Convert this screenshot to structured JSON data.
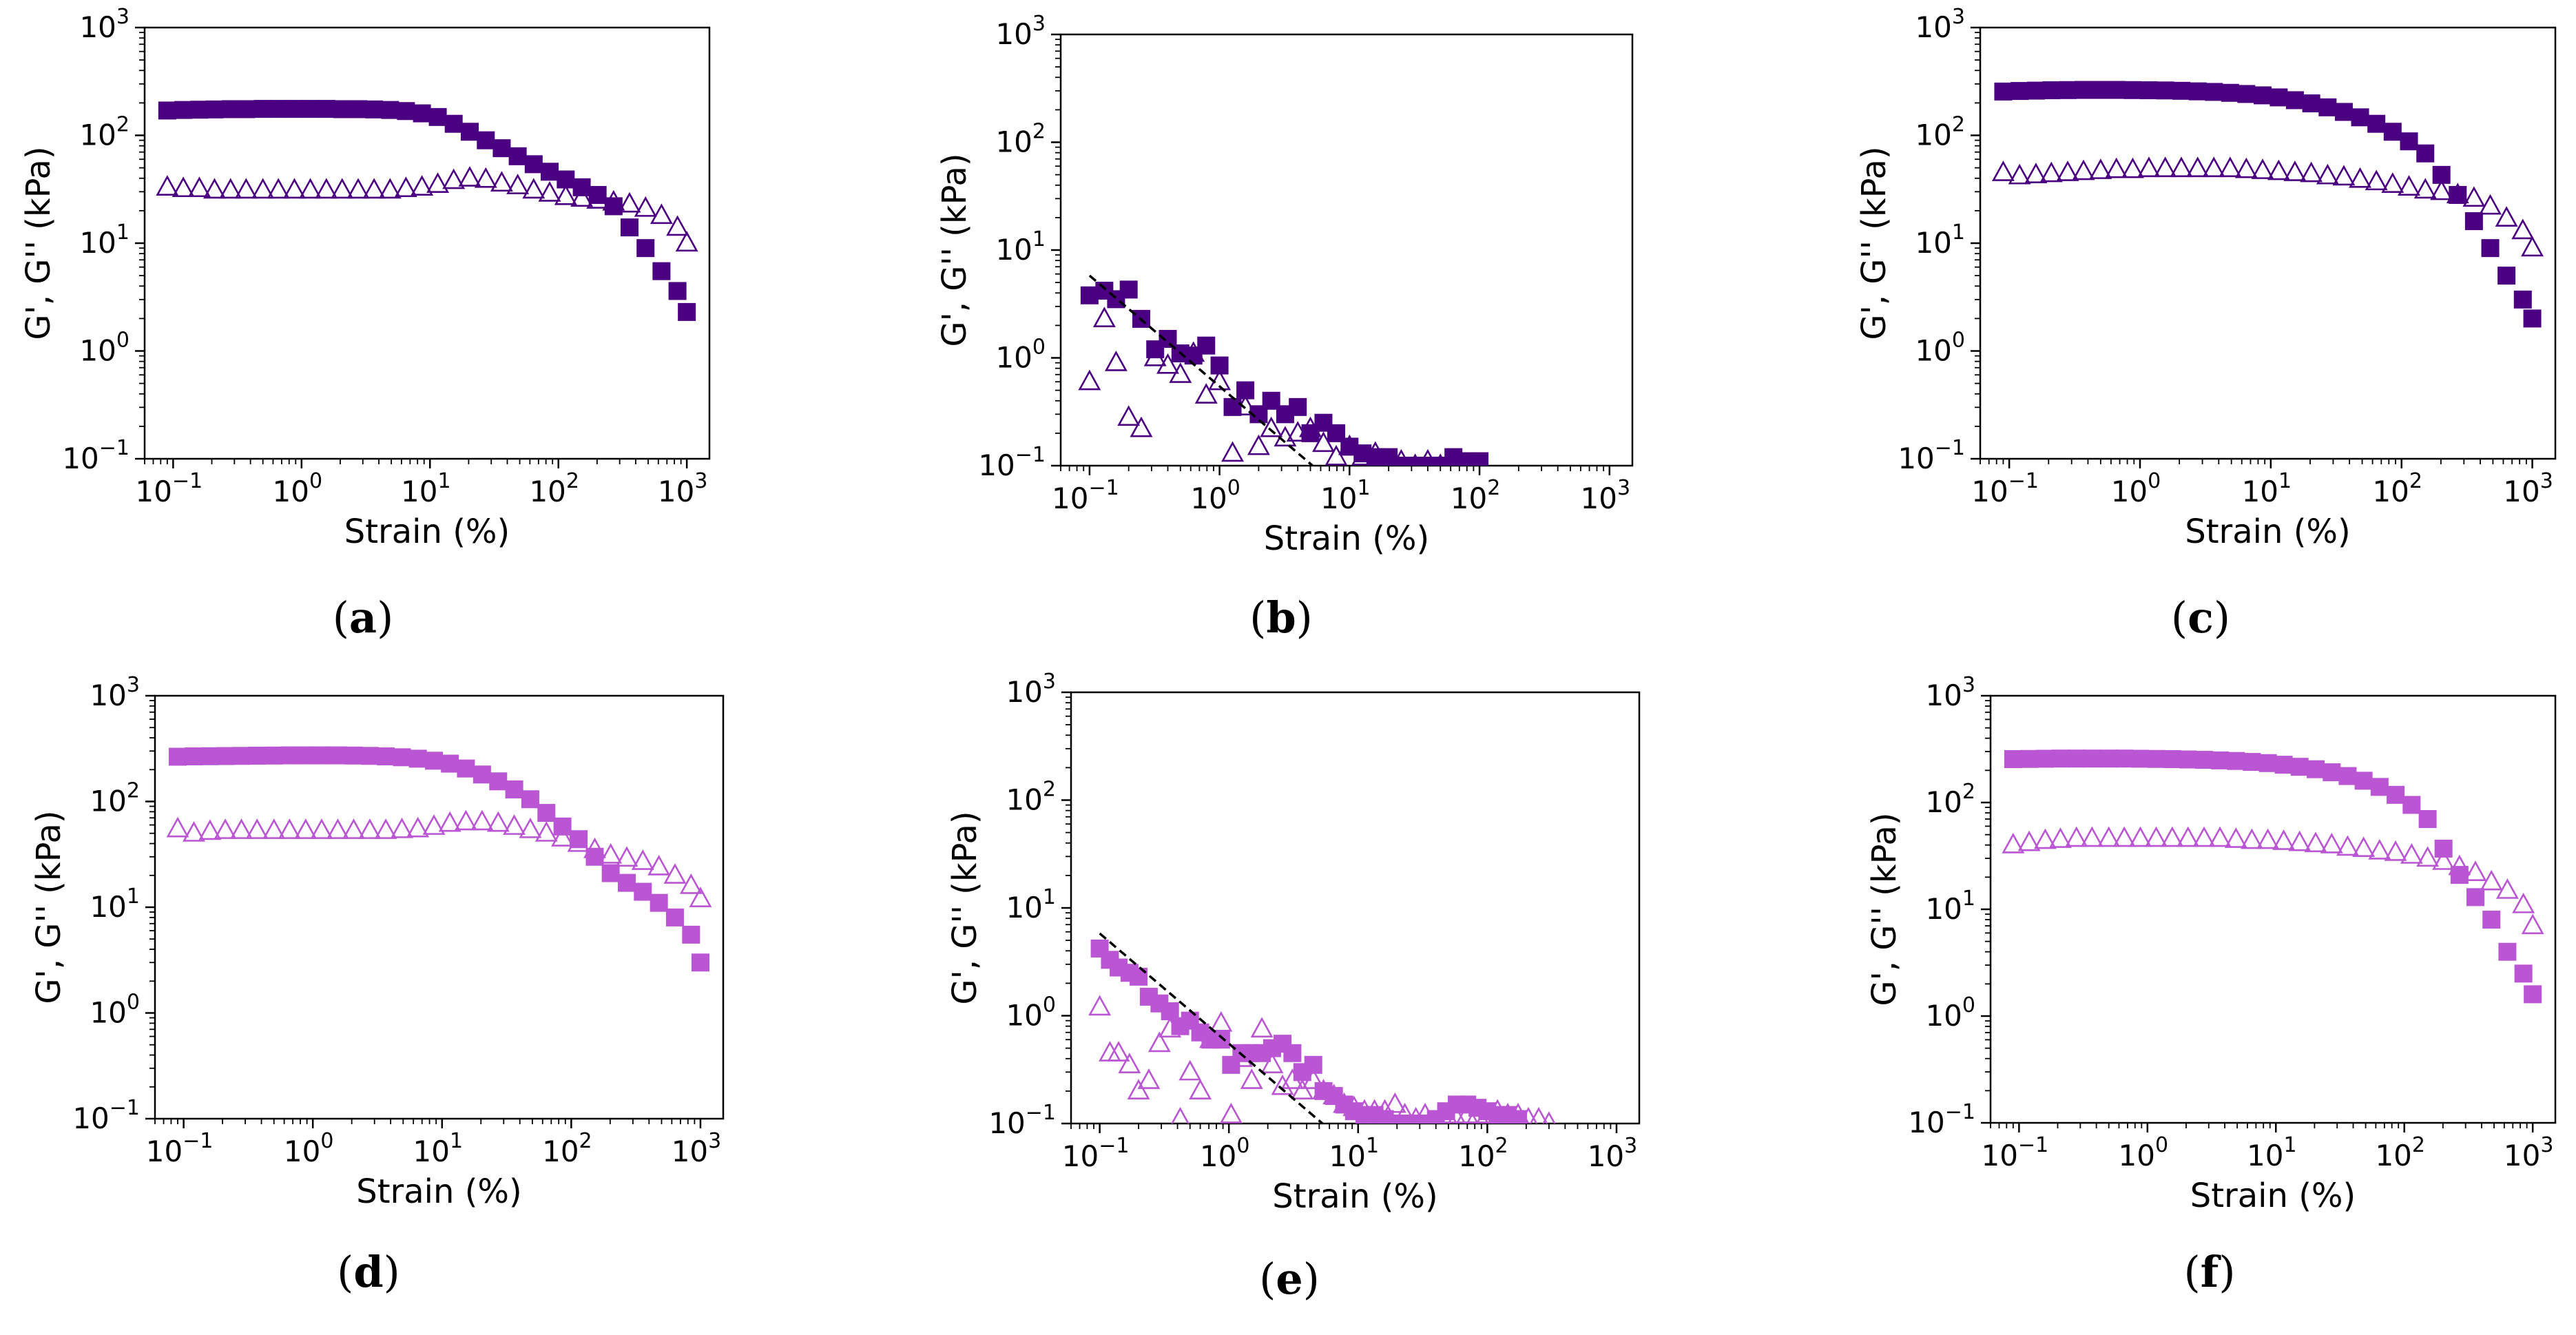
{
  "figure": {
    "colors": {
      "dark": "#4b0082",
      "light": "#ba55d3",
      "fit": "#000000"
    },
    "axis_common": {
      "xlabel": "Strain (%)",
      "ylabel": "G', G'' (kPa)",
      "xscale": "log",
      "yscale": "log",
      "xlim": [
        0.06,
        1500
      ],
      "ylim": [
        0.1,
        1000
      ],
      "xticks": [
        {
          "base": "10",
          "exp": "−1",
          "value": 0.1
        },
        {
          "base": "10",
          "exp": "0",
          "value": 1
        },
        {
          "base": "10",
          "exp": "1",
          "value": 10
        },
        {
          "base": "10",
          "exp": "2",
          "value": 100
        },
        {
          "base": "10",
          "exp": "3",
          "value": 1000
        }
      ],
      "yticks": [
        {
          "base": "10",
          "exp": "−1",
          "value": 0.1
        },
        {
          "base": "10",
          "exp": "0",
          "value": 1
        },
        {
          "base": "10",
          "exp": "1",
          "value": 10
        },
        {
          "base": "10",
          "exp": "2",
          "value": 100
        },
        {
          "base": "10",
          "exp": "3",
          "value": 1000
        }
      ]
    }
  },
  "chart_data": [
    {
      "id": "a",
      "type": "scatter",
      "caption": "a",
      "color": "dark",
      "series": [
        {
          "name": "G'",
          "marker": "filled-square",
          "x": [
            0.09,
            0.12,
            0.16,
            0.21,
            0.28,
            0.37,
            0.5,
            0.66,
            0.88,
            1.17,
            1.56,
            2.07,
            2.76,
            3.67,
            4.89,
            6.5,
            8.66,
            11.5,
            15.3,
            20.4,
            27.2,
            36.2,
            48.2,
            64.2,
            85.5,
            114,
            152,
            202,
            269,
            358,
            477,
            635,
            846,
            1000
          ],
          "y": [
            170,
            172,
            173,
            174,
            175,
            175,
            176,
            176,
            176,
            176,
            176,
            175,
            175,
            174,
            172,
            168,
            160,
            148,
            128,
            108,
            90,
            76,
            64,
            54,
            46,
            39,
            33,
            28,
            22,
            14,
            9,
            5.5,
            3.6,
            2.3
          ]
        },
        {
          "name": "G''",
          "marker": "open-triangle",
          "x": [
            0.09,
            0.12,
            0.16,
            0.21,
            0.28,
            0.37,
            0.5,
            0.66,
            0.88,
            1.17,
            1.56,
            2.07,
            2.76,
            3.67,
            4.89,
            6.5,
            8.66,
            11.5,
            15.3,
            20.4,
            27.2,
            36.2,
            48.2,
            64.2,
            85.5,
            114,
            152,
            202,
            269,
            358,
            477,
            635,
            846,
            1000
          ],
          "y": [
            33,
            32,
            32,
            31,
            31,
            31,
            31,
            31,
            31,
            31,
            31,
            31,
            31,
            31,
            31,
            32,
            33,
            35,
            38,
            40,
            39,
            36,
            34,
            31,
            29,
            27,
            26,
            25,
            24,
            23,
            21,
            18,
            14,
            10
          ]
        }
      ]
    },
    {
      "id": "b",
      "type": "scatter",
      "caption": "b",
      "color": "dark",
      "series": [
        {
          "name": "G'",
          "marker": "filled-square",
          "x": [
            0.1,
            0.13,
            0.16,
            0.2,
            0.25,
            0.32,
            0.4,
            0.5,
            0.63,
            0.79,
            1.0,
            1.26,
            1.58,
            2.0,
            2.5,
            3.2,
            4.0,
            5.0,
            6.3,
            7.9,
            10,
            12.6,
            15.8,
            20,
            25,
            32,
            40,
            50,
            63,
            79,
            100
          ],
          "y": [
            3.8,
            4.2,
            3.5,
            4.3,
            2.3,
            1.2,
            1.5,
            1.1,
            1.05,
            1.3,
            0.85,
            0.35,
            0.5,
            0.3,
            0.4,
            0.3,
            0.35,
            0.2,
            0.25,
            0.2,
            0.15,
            0.13,
            0.12,
            0.12,
            0.1,
            0.1,
            0.1,
            0.1,
            0.12,
            0.11,
            0.11
          ]
        },
        {
          "name": "G''",
          "marker": "open-triangle",
          "x": [
            0.1,
            0.13,
            0.16,
            0.2,
            0.25,
            0.32,
            0.4,
            0.5,
            0.63,
            0.79,
            1.0,
            1.26,
            1.58,
            2.0,
            2.5,
            3.2,
            4.0,
            5.0,
            6.3,
            7.9,
            10,
            12.6,
            15.8,
            20,
            25,
            32,
            40,
            50
          ],
          "y": [
            0.6,
            2.3,
            0.9,
            0.28,
            0.22,
            1.0,
            0.85,
            0.7,
            1.1,
            0.45,
            0.6,
            0.13,
            0.35,
            0.15,
            0.22,
            0.18,
            0.2,
            0.22,
            0.16,
            0.12,
            0.15,
            0.12,
            0.13,
            0.11,
            0.11,
            0.1,
            0.11,
            0.1
          ]
        },
        {
          "name": "fit",
          "marker": "dashed-line",
          "x": [
            0.1,
            5.2
          ],
          "y": [
            5.8,
            0.1
          ]
        }
      ]
    },
    {
      "id": "c",
      "type": "scatter",
      "caption": "c",
      "color": "dark",
      "series": [
        {
          "name": "G'",
          "marker": "filled-square",
          "x": [
            0.09,
            0.12,
            0.16,
            0.21,
            0.28,
            0.37,
            0.5,
            0.66,
            0.88,
            1.17,
            1.56,
            2.07,
            2.76,
            3.67,
            4.89,
            6.5,
            8.66,
            11.5,
            15.3,
            20.4,
            27.2,
            36.2,
            48.2,
            64.2,
            85.5,
            114,
            152,
            202,
            269,
            358,
            477,
            635,
            846,
            1000
          ],
          "y": [
            255,
            258,
            260,
            262,
            263,
            264,
            264,
            264,
            263,
            262,
            261,
            259,
            256,
            253,
            248,
            242,
            235,
            225,
            212,
            198,
            182,
            165,
            147,
            128,
            108,
            88,
            68,
            43,
            28,
            16,
            9,
            5,
            3,
            2
          ]
        },
        {
          "name": "G''",
          "marker": "open-triangle",
          "x": [
            0.09,
            0.12,
            0.16,
            0.21,
            0.28,
            0.37,
            0.5,
            0.66,
            0.88,
            1.17,
            1.56,
            2.07,
            2.76,
            3.67,
            4.89,
            6.5,
            8.66,
            11.5,
            15.3,
            20.4,
            27.2,
            36.2,
            48.2,
            64.2,
            85.5,
            114,
            152,
            202,
            269,
            358,
            477,
            635,
            846,
            1000
          ],
          "y": [
            45,
            42,
            43,
            44,
            45,
            46,
            47,
            48,
            48,
            49,
            49,
            49,
            49,
            49,
            49,
            48,
            47,
            46,
            45,
            44,
            42,
            41,
            39,
            37,
            35,
            33,
            31,
            30,
            28,
            26,
            22,
            17,
            13,
            9
          ]
        }
      ]
    },
    {
      "id": "d",
      "type": "scatter",
      "caption": "d",
      "color": "light",
      "series": [
        {
          "name": "G'",
          "marker": "filled-square",
          "x": [
            0.09,
            0.12,
            0.16,
            0.21,
            0.28,
            0.37,
            0.5,
            0.66,
            0.88,
            1.17,
            1.56,
            2.07,
            2.76,
            3.67,
            4.89,
            6.5,
            8.66,
            11.5,
            15.3,
            20.4,
            27.2,
            36.2,
            48.2,
            64.2,
            85.5,
            114,
            152,
            202,
            269,
            358,
            477,
            635,
            846,
            1000
          ],
          "y": [
            265,
            267,
            268,
            269,
            270,
            271,
            272,
            273,
            273,
            273,
            273,
            272,
            270,
            267,
            262,
            254,
            243,
            228,
            205,
            180,
            155,
            130,
            105,
            78,
            58,
            44,
            30,
            21,
            17,
            14,
            11,
            8,
            5.5,
            3
          ]
        },
        {
          "name": "G''",
          "marker": "open-triangle",
          "x": [
            0.09,
            0.12,
            0.16,
            0.21,
            0.28,
            0.37,
            0.5,
            0.66,
            0.88,
            1.17,
            1.56,
            2.07,
            2.76,
            3.67,
            4.89,
            6.5,
            8.66,
            11.5,
            15.3,
            20.4,
            27.2,
            36.2,
            48.2,
            64.2,
            85.5,
            114,
            152,
            202,
            269,
            358,
            477,
            635,
            846,
            1000
          ],
          "y": [
            55,
            50,
            52,
            53,
            53,
            53,
            53,
            53,
            53,
            53,
            53,
            53,
            53,
            53,
            54,
            55,
            58,
            62,
            64,
            64,
            62,
            58,
            54,
            50,
            45,
            40,
            35,
            31,
            29,
            27,
            24,
            20,
            16,
            12
          ]
        }
      ]
    },
    {
      "id": "e",
      "type": "scatter",
      "caption": "e",
      "color": "light",
      "series": [
        {
          "name": "G'",
          "marker": "filled-square",
          "x": [
            0.1,
            0.12,
            0.14,
            0.17,
            0.2,
            0.24,
            0.29,
            0.35,
            0.42,
            0.5,
            0.6,
            0.72,
            0.87,
            1.04,
            1.25,
            1.5,
            1.8,
            2.16,
            2.6,
            3.1,
            3.7,
            4.5,
            5.4,
            6.5,
            7.8,
            9.3,
            11.2,
            13.4,
            16.1,
            19.3,
            23,
            28,
            33,
            40,
            48,
            58,
            70,
            84,
            100,
            120,
            144,
            173
          ],
          "y": [
            4.2,
            3.3,
            2.8,
            2.5,
            2.3,
            1.5,
            1.3,
            1.1,
            0.8,
            0.9,
            0.7,
            0.6,
            0.6,
            0.35,
            0.45,
            0.45,
            0.45,
            0.5,
            0.55,
            0.45,
            0.3,
            0.35,
            0.2,
            0.18,
            0.15,
            0.13,
            0.12,
            0.12,
            0.11,
            0.1,
            0.1,
            0.1,
            0.1,
            0.11,
            0.13,
            0.15,
            0.15,
            0.14,
            0.13,
            0.12,
            0.12,
            0.11
          ]
        },
        {
          "name": "G''",
          "marker": "open-triangle",
          "x": [
            0.1,
            0.12,
            0.14,
            0.17,
            0.2,
            0.24,
            0.29,
            0.35,
            0.42,
            0.5,
            0.6,
            0.72,
            0.87,
            1.04,
            1.25,
            1.5,
            1.8,
            2.16,
            2.6,
            3.1,
            3.7,
            4.5,
            5.4,
            6.5,
            7.8,
            9.3,
            11.2,
            13.4,
            16.1,
            19.3,
            23,
            28,
            33,
            40,
            48,
            58,
            70,
            84,
            100,
            120,
            144,
            173,
            208,
            250,
            300
          ],
          "y": [
            1.2,
            0.45,
            0.45,
            0.35,
            0.2,
            0.25,
            0.55,
            0.75,
            0.11,
            0.3,
            0.2,
            0.6,
            0.85,
            0.12,
            0.4,
            0.25,
            0.75,
            0.35,
            0.22,
            0.25,
            0.2,
            0.25,
            0.2,
            0.18,
            0.15,
            0.14,
            0.13,
            0.13,
            0.13,
            0.15,
            0.12,
            0.11,
            0.12,
            0.1,
            0.12,
            0.11,
            0.12,
            0.12,
            0.12,
            0.13,
            0.12,
            0.12,
            0.11,
            0.11,
            0.1
          ]
        },
        {
          "name": "fit",
          "marker": "dashed-line",
          "x": [
            0.1,
            5.3
          ],
          "y": [
            5.8,
            0.1
          ]
        }
      ]
    },
    {
      "id": "f",
      "type": "scatter",
      "caption": "f",
      "color": "light",
      "series": [
        {
          "name": "G'",
          "marker": "filled-square",
          "x": [
            0.09,
            0.12,
            0.16,
            0.21,
            0.28,
            0.37,
            0.5,
            0.66,
            0.88,
            1.17,
            1.56,
            2.07,
            2.76,
            3.67,
            4.89,
            6.5,
            8.66,
            11.5,
            15.3,
            20.4,
            27.2,
            36.2,
            48.2,
            64.2,
            85.5,
            114,
            152,
            202,
            269,
            358,
            477,
            635,
            846,
            1000
          ],
          "y": [
            255,
            256,
            257,
            258,
            258,
            258,
            258,
            258,
            257,
            256,
            255,
            253,
            251,
            248,
            245,
            240,
            234,
            226,
            216,
            205,
            192,
            177,
            160,
            140,
            118,
            95,
            70,
            37,
            21,
            13,
            8,
            4,
            2.5,
            1.6
          ]
        },
        {
          "name": "G''",
          "marker": "open-triangle",
          "x": [
            0.09,
            0.12,
            0.16,
            0.21,
            0.28,
            0.37,
            0.5,
            0.66,
            0.88,
            1.17,
            1.56,
            2.07,
            2.76,
            3.67,
            4.89,
            6.5,
            8.66,
            11.5,
            15.3,
            20.4,
            27.2,
            36.2,
            48.2,
            64.2,
            85.5,
            114,
            152,
            202,
            269,
            358,
            477,
            635,
            846,
            1000
          ],
          "y": [
            40,
            42,
            44,
            45,
            46,
            46,
            46,
            46,
            46,
            46,
            46,
            46,
            46,
            46,
            45,
            44,
            44,
            43,
            42,
            41,
            40,
            38,
            37,
            35,
            34,
            32,
            30,
            28,
            25,
            22,
            18,
            15,
            11,
            7
          ]
        }
      ]
    }
  ]
}
